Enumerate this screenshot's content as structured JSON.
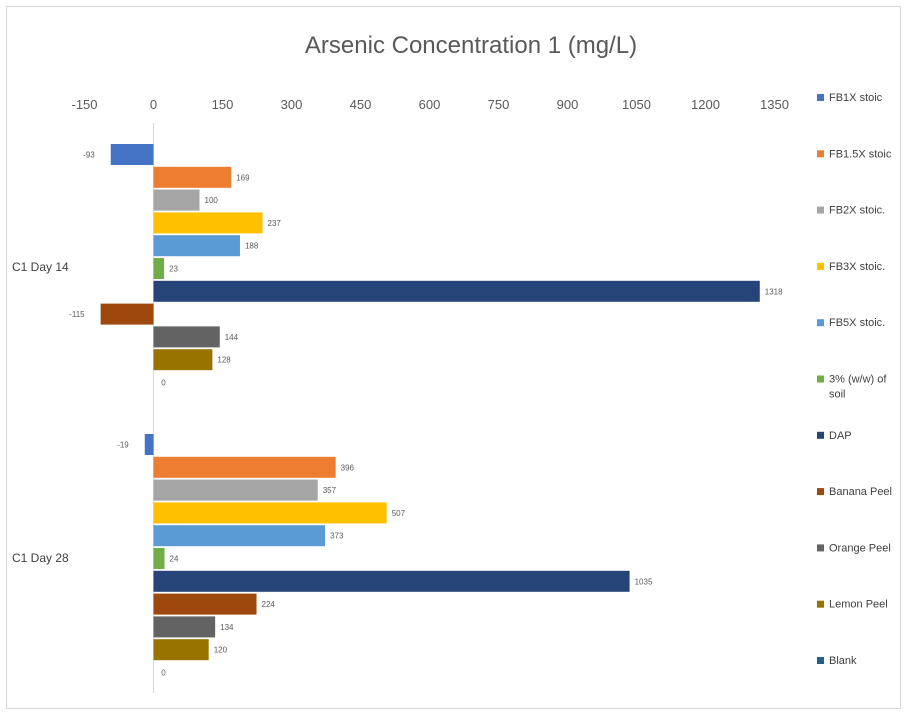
{
  "chart_data": {
    "type": "bar",
    "orientation": "horizontal",
    "title": "Arsenic Concentration 1  (mg/L)",
    "xlim": [
      -150,
      1350
    ],
    "x_ticks": [
      -150,
      0,
      150,
      300,
      450,
      600,
      750,
      900,
      1050,
      1200,
      1350
    ],
    "categories": [
      "C1 Day 14",
      "C1 Day 28"
    ],
    "legend_position": "right",
    "grid": false,
    "series": [
      {
        "name": "FB1X stoic",
        "color": "#4472C4",
        "values": [
          -93,
          -19
        ],
        "labels": [
          "-93",
          "-19"
        ]
      },
      {
        "name": "FB1.5X stoic",
        "color": "#ED7D31",
        "values": [
          169,
          396
        ],
        "labels": [
          "169",
          "396"
        ]
      },
      {
        "name": "FB2X stoic.",
        "color": "#A5A5A5",
        "values": [
          100,
          357
        ],
        "labels": [
          "100",
          "357"
        ]
      },
      {
        "name": "FB3X stoic.",
        "color": "#FFC000",
        "values": [
          237,
          507
        ],
        "labels": [
          "237",
          "507"
        ]
      },
      {
        "name": "FB5X stoic.",
        "color": "#5B9BD5",
        "values": [
          188,
          373
        ],
        "labels": [
          "188",
          "373"
        ]
      },
      {
        "name": "3% (w/w) of soil",
        "color": "#70AD47",
        "values": [
          23,
          24
        ],
        "labels": [
          "23",
          "24"
        ]
      },
      {
        "name": "DAP",
        "color": "#264478",
        "values": [
          1318,
          1035
        ],
        "labels": [
          "1318",
          "1035"
        ]
      },
      {
        "name": "Banana Peel",
        "color": "#9E480E",
        "values": [
          -115,
          224
        ],
        "labels": [
          "-115",
          "224"
        ]
      },
      {
        "name": "Orange Peel",
        "color": "#636363",
        "values": [
          144,
          134
        ],
        "labels": [
          "144",
          "134"
        ]
      },
      {
        "name": "Lemon Peel",
        "color": "#997300",
        "values": [
          128,
          120
        ],
        "labels": [
          "128",
          "120"
        ]
      },
      {
        "name": "Blank",
        "color": "#255E91",
        "values": [
          0,
          0
        ],
        "labels": [
          "0",
          "0"
        ]
      }
    ]
  }
}
